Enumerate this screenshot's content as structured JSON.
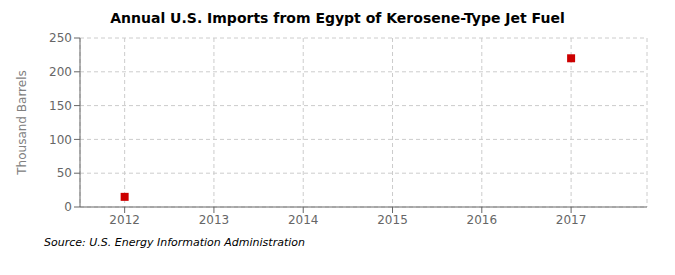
{
  "chart_data": {
    "type": "scatter",
    "title": "Annual U.S. Imports from Egypt of Kerosene-Type Jet Fuel",
    "y_label": "Thousand Barrels",
    "annotations": [
      "Source: U.S. Energy Information Administration"
    ],
    "x": [
      2012,
      2017
    ],
    "values": [
      15,
      220
    ],
    "color": "#cc0000",
    "marker": "square",
    "xlim": [
      2011.5,
      2017.85
    ],
    "ylim": [
      0,
      250
    ],
    "xticks": [
      2012,
      2013,
      2014,
      2015,
      2016,
      2017
    ],
    "yticks": [
      0,
      50,
      100,
      150,
      200,
      250
    ],
    "grid": true
  }
}
